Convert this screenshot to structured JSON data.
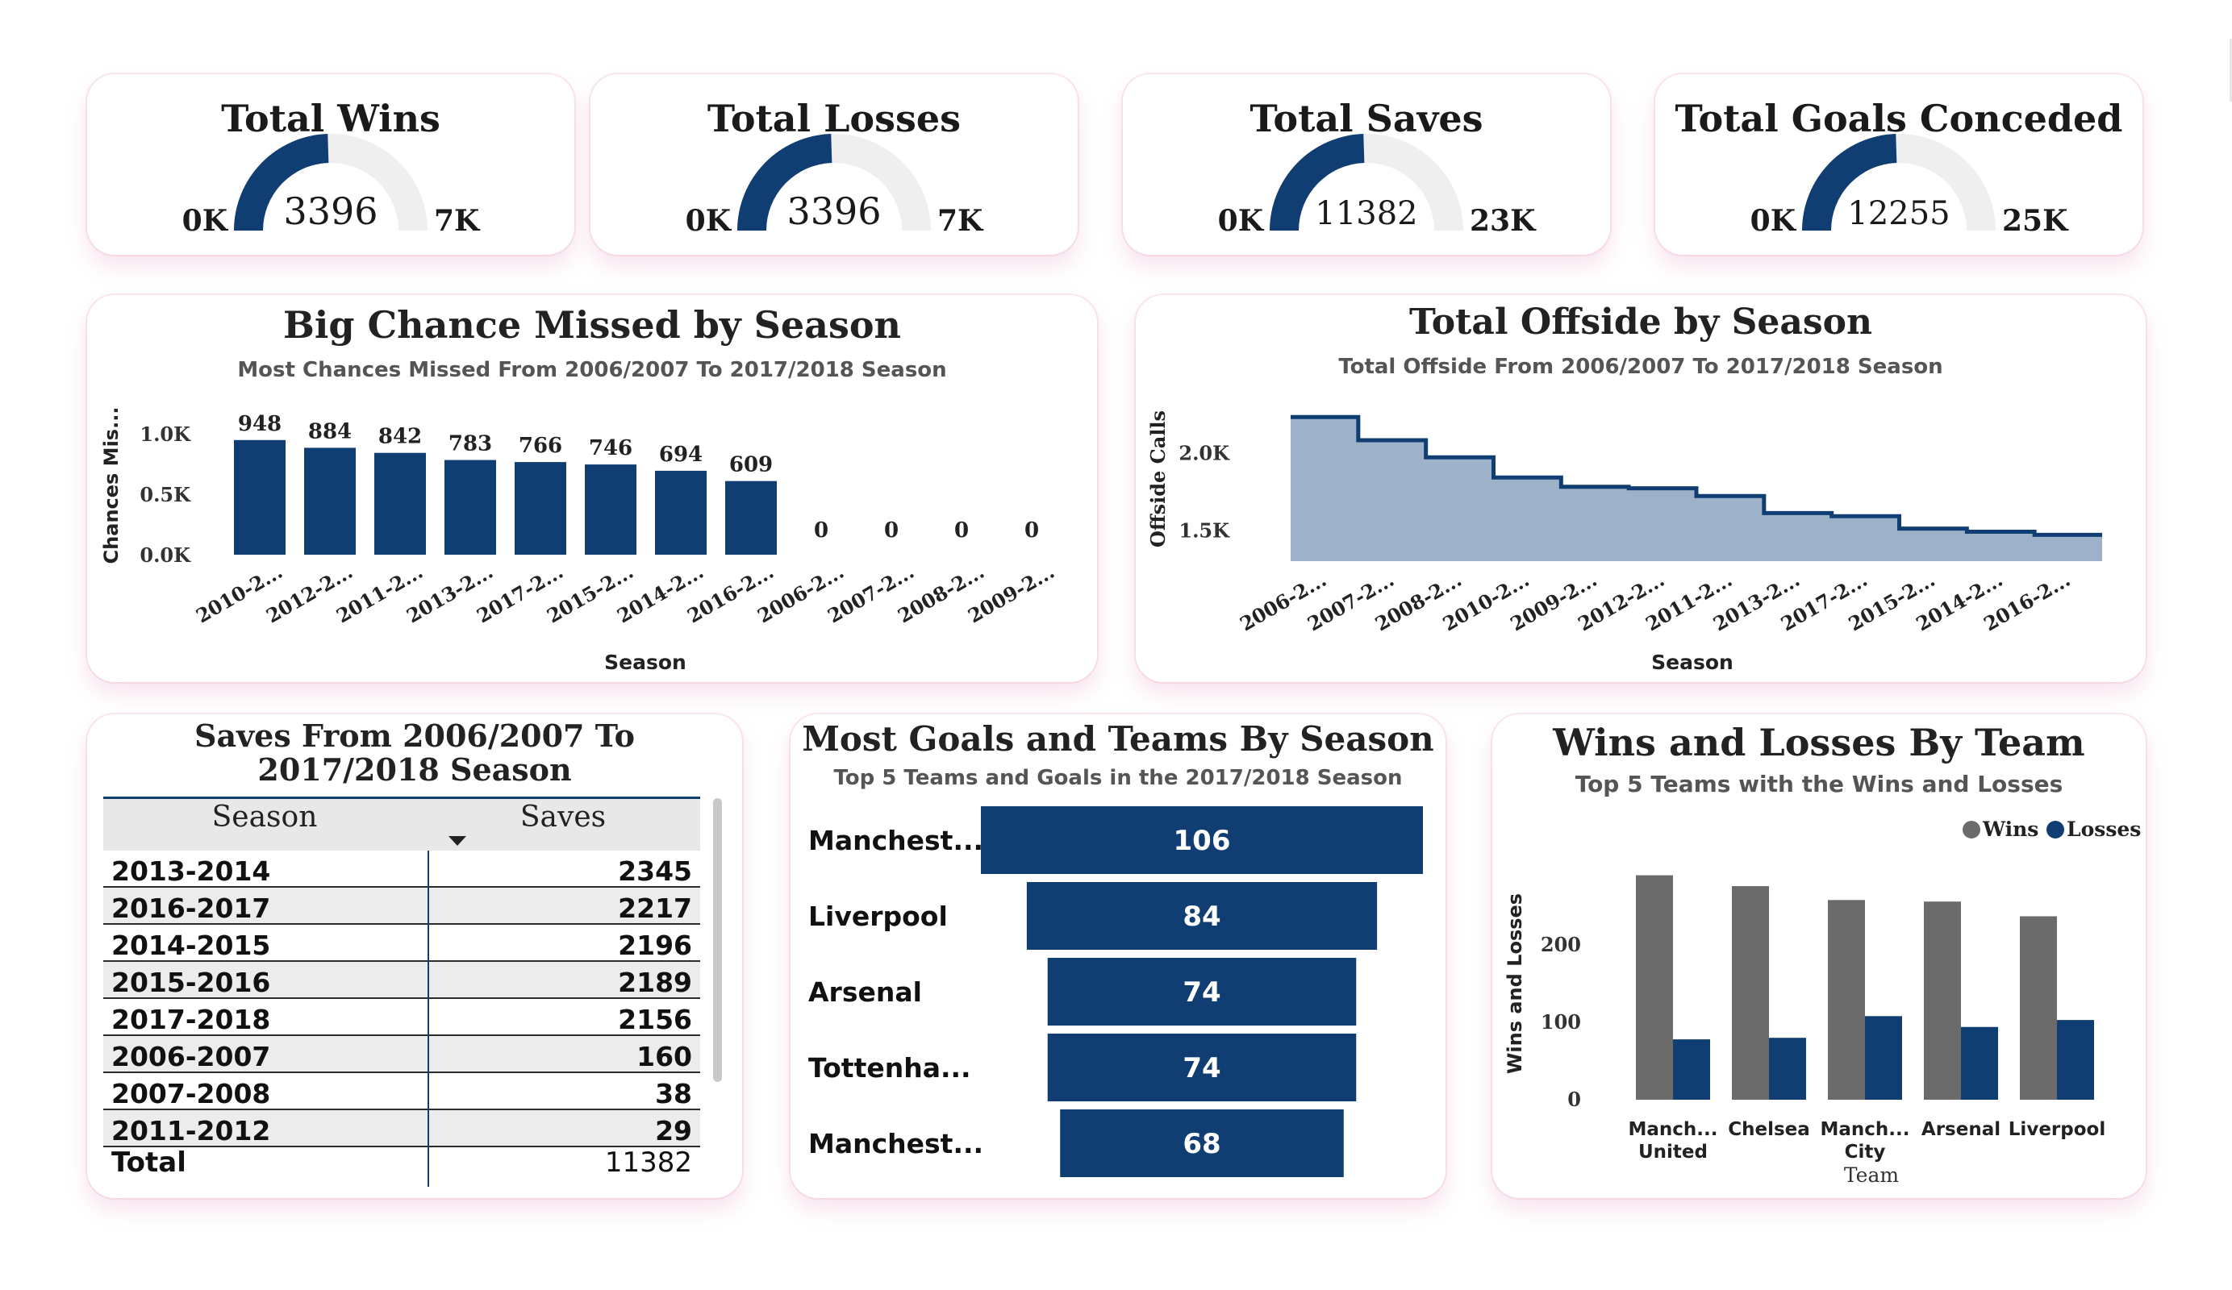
{
  "kpis": [
    {
      "title": "Total Wins",
      "value": "3396",
      "min_label": "0K",
      "max_label": "7K",
      "fraction": 0.49
    },
    {
      "title": "Total Losses",
      "value": "3396",
      "min_label": "0K",
      "max_label": "7K",
      "fraction": 0.49
    },
    {
      "title": "Total Saves",
      "value": "11382",
      "min_label": "0K",
      "max_label": "23K",
      "fraction": 0.49
    },
    {
      "title": "Total Goals Conceded",
      "value": "12255",
      "min_label": "0K",
      "max_label": "25K",
      "fraction": 0.49
    }
  ],
  "colors": {
    "primary": "#103e72",
    "gauge_bg": "#efefef",
    "area_fill": "#9db1c9",
    "wins": "#6b6b6b",
    "card_shadow": "#f5d7e4"
  },
  "chart_data": [
    {
      "type": "bar",
      "title": "Big Chance Missed by Season",
      "subtitle": "Most Chances Missed From 2006/2007 To 2017/2018 Season",
      "xlabel": "Season",
      "ylabel": "Chances Mis...",
      "categories": [
        "2010-2...",
        "2012-2...",
        "2011-2...",
        "2013-2...",
        "2017-2...",
        "2015-2...",
        "2014-2...",
        "2016-2...",
        "2006-2...",
        "2007-2...",
        "2008-2...",
        "2009-2..."
      ],
      "values": [
        948,
        884,
        842,
        783,
        766,
        746,
        694,
        609,
        0,
        0,
        0,
        0
      ],
      "yticks": [
        "0.0K",
        "0.5K",
        "1.0K"
      ],
      "ytick_values": [
        0,
        500,
        1000
      ],
      "ylim": [
        0,
        1000
      ]
    },
    {
      "type": "area",
      "title": "Total Offside by Season",
      "subtitle": "Total Offside From 2006/2007 To 2017/2018 Season",
      "xlabel": "Season",
      "ylabel": "Offside Calls",
      "categories": [
        "2006-2...",
        "2007-2...",
        "2008-2...",
        "2010-2...",
        "2009-2...",
        "2012-2...",
        "2011-2...",
        "2013-2...",
        "2017-2...",
        "2015-2...",
        "2014-2...",
        "2016-2..."
      ],
      "values": [
        2230,
        2080,
        1970,
        1840,
        1780,
        1770,
        1720,
        1610,
        1590,
        1510,
        1490,
        1470
      ],
      "yticks": [
        "1.5K",
        "2.0K"
      ],
      "ytick_values": [
        1500,
        2000
      ],
      "ylim": [
        1300,
        2330
      ]
    },
    {
      "type": "table",
      "title": "Saves From 2006/2007 To 2017/2018 Season",
      "columns": [
        "Season",
        "Saves"
      ],
      "rows": [
        [
          "2013-2014",
          "2345"
        ],
        [
          "2016-2017",
          "2217"
        ],
        [
          "2014-2015",
          "2196"
        ],
        [
          "2015-2016",
          "2189"
        ],
        [
          "2017-2018",
          "2156"
        ],
        [
          "2006-2007",
          "160"
        ],
        [
          "2007-2008",
          "38"
        ],
        [
          "2011-2012",
          "29"
        ]
      ],
      "total": [
        "Total",
        "11382"
      ]
    },
    {
      "type": "bar",
      "title": "Most Goals and Teams By Season",
      "subtitle": "Top 5 Teams and Goals in the 2017/2018 Season",
      "categories": [
        "Manchest...",
        "Liverpool",
        "Arsenal",
        "Tottenha...",
        "Manchest..."
      ],
      "values": [
        106,
        84,
        74,
        74,
        68
      ]
    },
    {
      "type": "bar",
      "title": "Wins and Losses By Team",
      "subtitle": "Top 5 Teams with the Wins and Losses",
      "xlabel": "Team",
      "ylabel": "Wins and Losses",
      "categories": [
        [
          "Manch...",
          "United"
        ],
        [
          "Chelsea"
        ],
        [
          "Manch...",
          "City"
        ],
        [
          "Arsenal"
        ],
        [
          "Liverpool"
        ]
      ],
      "series": [
        {
          "name": "Wins",
          "values": [
            290,
            276,
            258,
            256,
            237
          ]
        },
        {
          "name": "Losses",
          "values": [
            78,
            80,
            108,
            94,
            103
          ]
        }
      ],
      "yticks": [
        "0",
        "100",
        "200"
      ],
      "ytick_values": [
        0,
        100,
        200
      ],
      "ylim": [
        0,
        300
      ],
      "legend": "top-right"
    }
  ]
}
